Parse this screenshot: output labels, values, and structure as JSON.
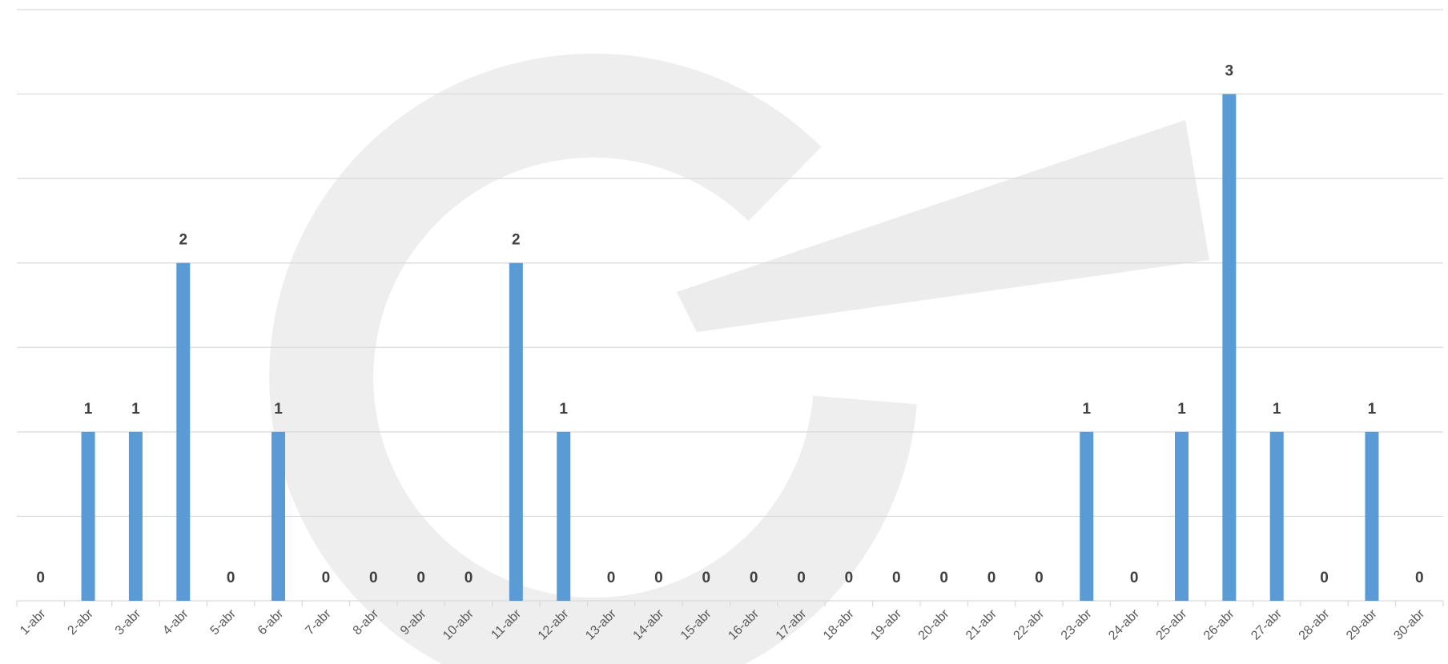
{
  "chart_data": {
    "type": "bar",
    "categories": [
      "1-abr",
      "2-abr",
      "3-abr",
      "4-abr",
      "5-abr",
      "6-abr",
      "7-abr",
      "8-abr",
      "9-abr",
      "10-abr",
      "11-abr",
      "12-abr",
      "13-abr",
      "14-abr",
      "15-abr",
      "16-abr",
      "17-abr",
      "18-abr",
      "19-abr",
      "20-abr",
      "21-abr",
      "22-abr",
      "23-abr",
      "24-abr",
      "25-abr",
      "26-abr",
      "27-abr",
      "28-abr",
      "29-abr",
      "30-abr"
    ],
    "values": [
      0,
      1,
      1,
      2,
      0,
      1,
      0,
      0,
      0,
      0,
      2,
      1,
      0,
      0,
      0,
      0,
      0,
      0,
      0,
      0,
      0,
      0,
      1,
      0,
      1,
      3,
      1,
      0,
      1,
      0
    ],
    "color": "#5b9bd5",
    "ylim": [
      0,
      3.5
    ],
    "yticks": [
      0,
      0.5,
      1,
      1.5,
      2,
      2.5,
      3,
      3.5
    ],
    "grid": true
  }
}
